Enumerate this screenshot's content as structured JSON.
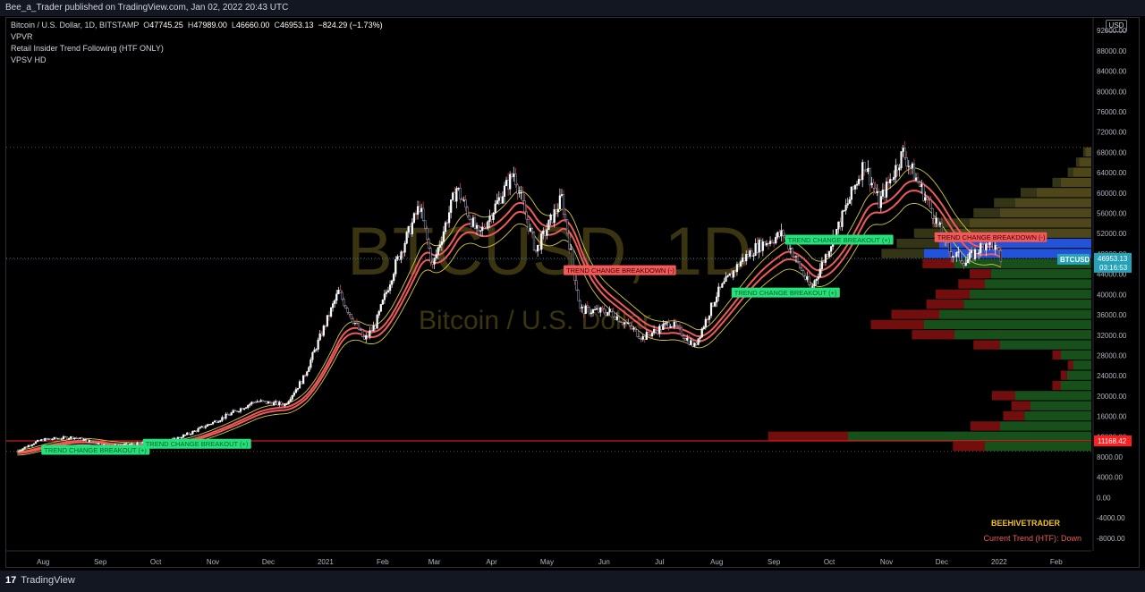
{
  "header": {
    "published_by": "Bee_a_Trader published on TradingView.com, Jan 02, 2022 20:43 UTC"
  },
  "legend": {
    "symbol": "Bitcoin / U.S. Dollar, 1D, BITSTAMP",
    "o_label": "O",
    "o_val": "47745.25",
    "h_label": "H",
    "h_val": "47989.00",
    "l_label": "L",
    "l_val": "46660.00",
    "c_label": "C",
    "c_val": "46953.13",
    "change": "−824.29 (−1.73%)",
    "indicators": [
      "VPVR",
      "Retail Insider Trend Following (HTF ONLY)",
      "VPSV HD"
    ]
  },
  "currency_button": "USD",
  "watermark": {
    "big": "BTCUSD, 1D",
    "small": "Bitcoin / U.S. Dollar"
  },
  "price_tags": {
    "last": {
      "symbol": "BTCUSD",
      "price": "46953.13",
      "countdown": "03:16:53",
      "color": "#26a2b8"
    },
    "low_line": {
      "price": "11168.42",
      "color": "#ff1f1f"
    }
  },
  "annotations": {
    "brand": "BEEHIVETRADER",
    "trend_status": "Current Trend (HTF): Down",
    "labels": [
      {
        "text": "TREND CHANGE BREAKOUT (+)",
        "type": "up"
      },
      {
        "text": "TREND CHANGE BREAKOUT (+)",
        "type": "up"
      },
      {
        "text": "TREND CHANGE BREAKDOWN (-)",
        "type": "down"
      },
      {
        "text": "TREND CHANGE BREAKOUT (+)",
        "type": "up"
      },
      {
        "text": "TREND CHANGE BREAKOUT (+)",
        "type": "up"
      },
      {
        "text": "TREND CHANGE BREAKDOWN (-)",
        "type": "down"
      }
    ],
    "label_dates": [
      "2020-08-01",
      "2020-09-25",
      "2021-05-11",
      "2021-08-10",
      "2021-09-08",
      "2021-11-28"
    ],
    "label_prices": [
      9400,
      10600,
      44800,
      40400,
      50800,
      51300
    ]
  },
  "colors": {
    "bg": "#000000",
    "up_candle": "#ffffff",
    "down_candle": "#000000",
    "band_main": "#f05a5a",
    "band_outer": "#d4c840",
    "breakout": "#27e07a",
    "breakdown": "#f05a5a",
    "vol_up_top": "#2962ff",
    "vol_up": "#1b5e20",
    "vol_down": "#7f1010",
    "vol_high_gray": "#5a5420"
  },
  "footer": {
    "brand": "TradingView"
  },
  "chart_data": {
    "type": "candlestick",
    "title": "Bitcoin / U.S. Dollar, 1D, BITSTAMP",
    "x_range": [
      "2020-07-12",
      "2022-02-20"
    ],
    "ylim": [
      -10500,
      94500
    ],
    "y_ticks": [
      "-8000.00",
      "-4000.00",
      "0.00",
      "4000.00",
      "8000.00",
      "12000.00",
      "16000.00",
      "20000.00",
      "24000.00",
      "28000.00",
      "32000.00",
      "36000.00",
      "40000.00",
      "44000.00",
      "48000.00",
      "52000.00",
      "56000.00",
      "60000.00",
      "64000.00",
      "68000.00",
      "72000.00",
      "76000.00",
      "80000.00",
      "84000.00",
      "88000.00",
      "92000.00"
    ],
    "x_ticks": [
      {
        "label": "Aug",
        "date": "2020-08-01"
      },
      {
        "label": "Sep",
        "date": "2020-09-01"
      },
      {
        "label": "Oct",
        "date": "2020-10-01"
      },
      {
        "label": "Nov",
        "date": "2020-11-01"
      },
      {
        "label": "Dec",
        "date": "2020-12-01"
      },
      {
        "label": "2021",
        "date": "2021-01-01"
      },
      {
        "label": "Feb",
        "date": "2021-02-01"
      },
      {
        "label": "Mar",
        "date": "2021-03-01"
      },
      {
        "label": "Apr",
        "date": "2021-04-01"
      },
      {
        "label": "May",
        "date": "2021-05-01"
      },
      {
        "label": "Jun",
        "date": "2021-06-01"
      },
      {
        "label": "Jul",
        "date": "2021-07-01"
      },
      {
        "label": "Aug",
        "date": "2021-08-01"
      },
      {
        "label": "Sep",
        "date": "2021-09-01"
      },
      {
        "label": "Oct",
        "date": "2021-10-01"
      },
      {
        "label": "Nov",
        "date": "2021-11-01"
      },
      {
        "label": "Dec",
        "date": "2021-12-01"
      },
      {
        "label": "2022",
        "date": "2022-01-01"
      },
      {
        "label": "Feb",
        "date": "2022-02-01"
      }
    ],
    "dotted_levels": [
      69000,
      47200,
      9100
    ],
    "price_path": [
      [
        "2020-07-18",
        9150
      ],
      [
        "2020-07-27",
        10800
      ],
      [
        "2020-08-01",
        11400
      ],
      [
        "2020-08-17",
        11900
      ],
      [
        "2020-09-05",
        10200
      ],
      [
        "2020-09-25",
        10700
      ],
      [
        "2020-10-10",
        11300
      ],
      [
        "2020-10-21",
        12900
      ],
      [
        "2020-11-05",
        15500
      ],
      [
        "2020-11-24",
        19000
      ],
      [
        "2020-12-10",
        18300
      ],
      [
        "2020-12-20",
        23500
      ],
      [
        "2021-01-08",
        40500
      ],
      [
        "2021-01-22",
        31000
      ],
      [
        "2021-01-28",
        34000
      ],
      [
        "2021-02-08",
        46000
      ],
      [
        "2021-02-21",
        57500
      ],
      [
        "2021-02-28",
        45500
      ],
      [
        "2021-03-13",
        61000
      ],
      [
        "2021-03-25",
        51500
      ],
      [
        "2021-04-13",
        64000
      ],
      [
        "2021-04-25",
        48500
      ],
      [
        "2021-05-09",
        59000
      ],
      [
        "2021-05-19",
        37000
      ],
      [
        "2021-06-05",
        36500
      ],
      [
        "2021-06-22",
        31500
      ],
      [
        "2021-07-07",
        34500
      ],
      [
        "2021-07-20",
        29800
      ],
      [
        "2021-08-01",
        40000
      ],
      [
        "2021-08-14",
        46500
      ],
      [
        "2021-08-23",
        49500
      ],
      [
        "2021-09-06",
        52000
      ],
      [
        "2021-09-21",
        41000
      ],
      [
        "2021-10-06",
        53500
      ],
      [
        "2021-10-20",
        66000
      ],
      [
        "2021-10-28",
        58000
      ],
      [
        "2021-11-10",
        68000
      ],
      [
        "2021-11-25",
        57000
      ],
      [
        "2021-12-05",
        48500
      ],
      [
        "2021-12-14",
        46500
      ],
      [
        "2021-12-27",
        51000
      ],
      [
        "2022-01-02",
        46953
      ]
    ],
    "volume_profile": {
      "bins_price_low": [
        9000,
        11000,
        13000,
        15000,
        17000,
        19000,
        21000,
        23000,
        25000,
        27000,
        29000,
        31000,
        33000,
        35000,
        37000,
        39000,
        41000,
        43000,
        45000,
        47000,
        49000,
        51000,
        53000,
        55000,
        57000,
        59000,
        61000,
        63000,
        65000,
        67000
      ],
      "buy_rel": [
        0.35,
        0.8,
        0.3,
        0.22,
        0.2,
        0.25,
        0.1,
        0.08,
        0.06,
        0.1,
        0.3,
        0.45,
        0.55,
        0.5,
        0.42,
        0.4,
        0.35,
        0.33,
        0.45,
        0.55,
        0.5,
        0.45,
        0.4,
        0.3,
        0.25,
        0.18,
        0.1,
        0.06,
        0.04,
        0.02
      ],
      "sell_rel": [
        0.3,
        0.75,
        0.28,
        0.2,
        0.18,
        0.22,
        0.08,
        0.06,
        0.05,
        0.08,
        0.25,
        0.4,
        0.5,
        0.45,
        0.35,
        0.32,
        0.25,
        0.2,
        0.3,
        0.4,
        0.4,
        0.38,
        0.35,
        0.25,
        0.2,
        0.15,
        0.08,
        0.05,
        0.03,
        0.02
      ]
    }
  }
}
